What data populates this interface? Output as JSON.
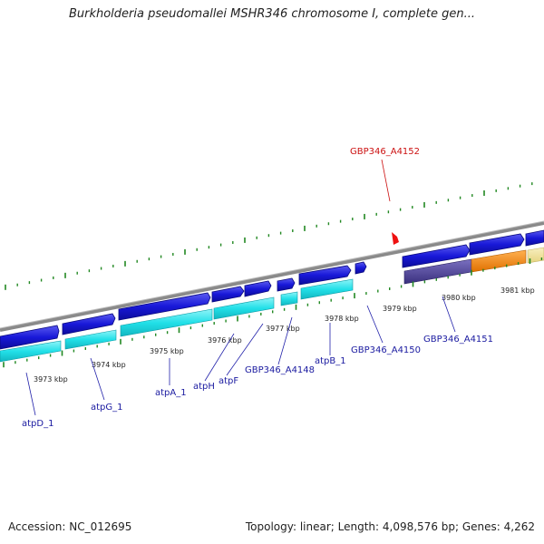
{
  "title": "Burkholderia pseudomallei MSHR346 chromosome I, complete gen...",
  "footer": {
    "accession": "Accession: NC_012695",
    "summary": "Topology: linear; Length: 4,098,576 bp; Genes: 4,262"
  },
  "ruler_labels": [
    "3973 kbp",
    "3974 kbp",
    "3975 kbp",
    "3976 kbp",
    "3977 kbp",
    "3978 kbp",
    "3979 kbp",
    "3980 kbp",
    "3981 kbp"
  ],
  "gene_labels": [
    "atpD_1",
    "atpG_1",
    "atpA_1",
    "atpH",
    "atpF",
    "GBP346_A4148",
    "atpB_1",
    "GBP346_A4150",
    "GBP346_A4151"
  ],
  "selected_gene_label": "GBP346_A4152",
  "colors": {
    "gene_blue": "#1818d8",
    "cds_cyan": "#22e0e8",
    "orange": "#ff8800",
    "purple": "#4a3f96",
    "yellow": "#f0e29a",
    "tick_green": "#228822",
    "backbone": "#8a8a8a",
    "selected": "#ee1111"
  }
}
